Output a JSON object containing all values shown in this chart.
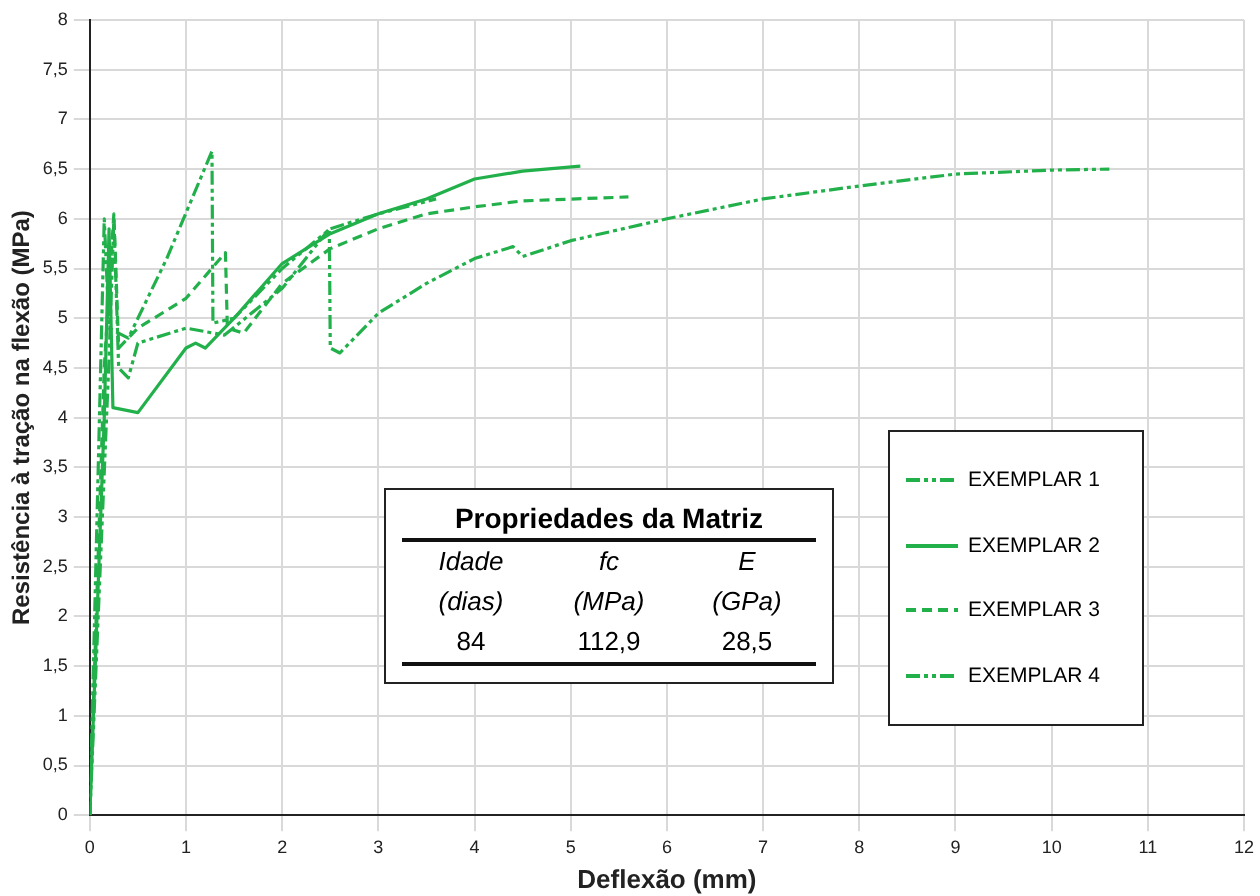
{
  "chart_data": {
    "type": "line",
    "xlabel": "Deflexão (mm)",
    "ylabel": "Resistência à tração na flexão (MPa)",
    "xlim": [
      0,
      12
    ],
    "xticks": [
      0,
      1,
      2,
      3,
      4,
      5,
      6,
      7,
      8,
      9,
      10,
      11,
      12
    ],
    "ylim": [
      0,
      8
    ],
    "yticks": [
      0,
      {
        "value": 0.5,
        "label": "0,5"
      },
      1,
      {
        "value": 1.5,
        "label": "1,5"
      },
      2,
      {
        "value": 2.5,
        "label": "2,5"
      },
      3,
      {
        "value": 3.5,
        "label": "3,5"
      },
      4,
      {
        "value": 4.5,
        "label": "4,5"
      },
      5,
      {
        "value": 5.5,
        "label": "5,5"
      },
      6,
      {
        "value": 6.5,
        "label": "6,5"
      },
      7,
      {
        "value": 7.5,
        "label": "7,5"
      },
      8
    ],
    "grid": true,
    "legend": "right",
    "marker": "none",
    "series": [
      {
        "name": "EXEMPLAR 1",
        "color": "#22b04b",
        "line_style": "dotted",
        "x": [
          0,
          0.2,
          0.25,
          0.3,
          0.4,
          0.5,
          1,
          1.4,
          2,
          2.49,
          2.5,
          2.6,
          3,
          3.5,
          4,
          4.4,
          4.5,
          5,
          6,
          7,
          8,
          9,
          10,
          10.6
        ],
        "values": [
          0,
          4.6,
          6.0,
          4.5,
          4.4,
          4.75,
          4.9,
          4.83,
          5.3,
          5.9,
          4.7,
          4.65,
          5.05,
          5.35,
          5.6,
          5.72,
          5.62,
          5.78,
          6.0,
          6.2,
          6.33,
          6.45,
          6.49,
          6.5
        ]
      },
      {
        "name": "EXEMPLAR 2",
        "color": "#22b04b",
        "line_style": "solid",
        "x": [
          0,
          0.15,
          0.2,
          0.24,
          0.5,
          1,
          1.1,
          1.2,
          1.5,
          2,
          2.5,
          3,
          3.5,
          4,
          4.5,
          5.1
        ],
        "values": [
          0,
          4,
          5.9,
          4.1,
          4.05,
          4.7,
          4.75,
          4.7,
          5.0,
          5.55,
          5.85,
          6.05,
          6.2,
          6.4,
          6.48,
          6.53
        ]
      },
      {
        "name": "EXEMPLAR 3",
        "color": "#22b04b",
        "line_style": "dashed",
        "x": [
          0,
          0.15,
          0.25,
          0.3,
          0.5,
          1,
          1.41,
          1.43,
          1.6,
          2,
          2.5,
          3,
          3.5,
          4,
          4.5,
          5.6
        ],
        "values": [
          0,
          4.5,
          6.05,
          4.7,
          4.9,
          5.2,
          5.66,
          4.9,
          4.85,
          5.35,
          5.7,
          5.9,
          6.05,
          6.12,
          6.18,
          6.22
        ]
      },
      {
        "name": "EXEMPLAR 4",
        "color": "#22b04b",
        "line_style": "dotted",
        "x": [
          0,
          0.1,
          0.15,
          0.2,
          0.4,
          0.8,
          1.27,
          1.28,
          1.5,
          2,
          2.5,
          3,
          3.6
        ],
        "values": [
          0,
          4,
          6.0,
          4.9,
          4.8,
          5.6,
          6.68,
          4.95,
          5.0,
          5.5,
          5.9,
          6.05,
          6.2
        ]
      }
    ],
    "annotations": [
      "Propriedades da Matriz",
      "Idade",
      "fc",
      "E",
      "(dias)",
      "(MPa)",
      "(GPa)",
      "84",
      "112,9",
      "28,5"
    ]
  }
}
